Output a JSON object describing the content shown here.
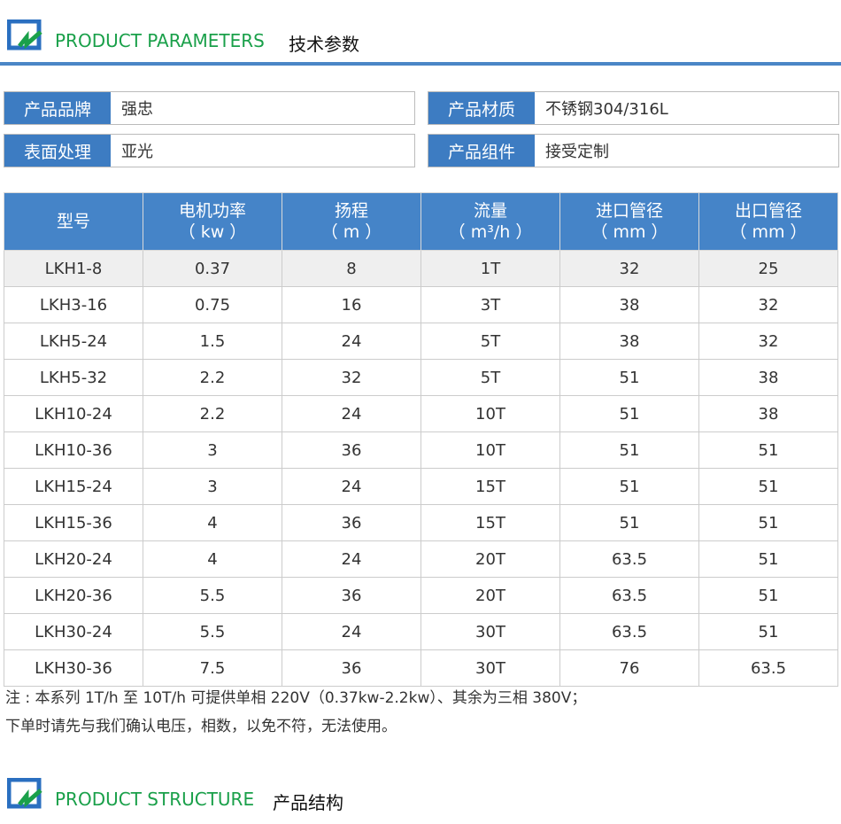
{
  "sections": [
    {
      "title_en": "PRODUCT PARAMETERS",
      "title_cn": "技术参数"
    },
    {
      "title_en": "PRODUCT STRUCTURE",
      "title_cn": "产品结构"
    }
  ],
  "attributes": [
    {
      "label": "产品品牌",
      "value": "强忠"
    },
    {
      "label": "产品材质",
      "value": "不锈钢304/316L"
    },
    {
      "label": "表面处理",
      "value": "亚光"
    },
    {
      "label": "产品组件",
      "value": "接受定制"
    }
  ],
  "table": {
    "headers": [
      [
        "型号",
        ""
      ],
      [
        "电机功率",
        "（ kw ）"
      ],
      [
        "扬程",
        "（ m ）"
      ],
      [
        "流量",
        "（ m³/h ）"
      ],
      [
        "进口管径",
        "（ mm ）"
      ],
      [
        "出口管径",
        "（ mm ）"
      ]
    ],
    "rows": [
      [
        "LKH1-8",
        "0.37",
        "8",
        "1T",
        "32",
        "25"
      ],
      [
        "LKH3-16",
        "0.75",
        "16",
        "3T",
        "38",
        "32"
      ],
      [
        "LKH5-24",
        "1.5",
        "24",
        "5T",
        "38",
        "32"
      ],
      [
        "LKH5-32",
        "2.2",
        "32",
        "5T",
        "51",
        "38"
      ],
      [
        "LKH10-24",
        "2.2",
        "24",
        "10T",
        "51",
        "38"
      ],
      [
        "LKH10-36",
        "3",
        "36",
        "10T",
        "51",
        "51"
      ],
      [
        "LKH15-24",
        "3",
        "24",
        "15T",
        "51",
        "51"
      ],
      [
        "LKH15-36",
        "4",
        "36",
        "15T",
        "51",
        "51"
      ],
      [
        "LKH20-24",
        "4",
        "24",
        "20T",
        "63.5",
        "51"
      ],
      [
        "LKH20-36",
        "5.5",
        "36",
        "20T",
        "63.5",
        "51"
      ],
      [
        "LKH30-24",
        "5.5",
        "24",
        "30T",
        "63.5",
        "51"
      ],
      [
        "LKH30-36",
        "7.5",
        "36",
        "30T",
        "76",
        "63.5"
      ]
    ]
  },
  "note": [
    "注 : 本系列 1T/h 至 10T/h 可提供单相 220V（0.37kw-2.2kw）、其余为三相 380V；",
    "下单时请先与我们确认电压，相数，以免不符，无法使用。"
  ],
  "colors": {
    "accent": "#4a86c6",
    "header": "#4584c8",
    "title_green": "#1aa04a"
  }
}
